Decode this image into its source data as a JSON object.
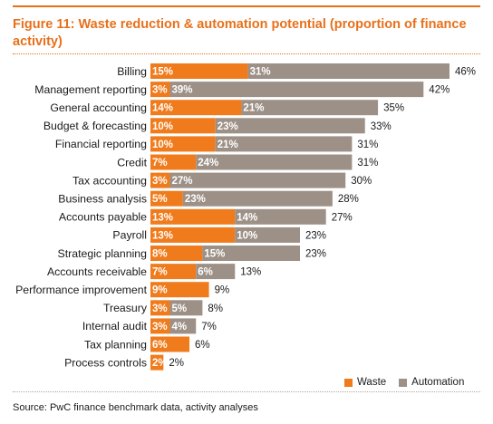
{
  "figure": {
    "title": "Figure 11: Waste reduction & automation potential (proportion of finance activity)",
    "source": "Source: PwC finance benchmark data, activity analyses"
  },
  "colors": {
    "waste": "#f07b1c",
    "automation": "#9d9086",
    "accent": "#e8701a"
  },
  "chart_data": {
    "type": "bar",
    "orientation": "horizontal",
    "stacked": true,
    "title": "Figure 11: Waste reduction & automation potential (proportion of finance activity)",
    "categories": [
      "Billing",
      "Management reporting",
      "General accounting",
      "Budget & forecasting",
      "Financial reporting",
      "Credit",
      "Tax accounting",
      "Business analysis",
      "Accounts payable",
      "Payroll",
      "Strategic planning",
      "Accounts receivable",
      "Performance improvement",
      "Treasury",
      "Internal audit",
      "Tax planning",
      "Process controls"
    ],
    "series": [
      {
        "name": "Waste",
        "values": [
          15,
          3,
          14,
          10,
          10,
          7,
          3,
          5,
          13,
          13,
          8,
          7,
          9,
          3,
          3,
          6,
          2
        ]
      },
      {
        "name": "Automation",
        "values": [
          31,
          39,
          21,
          23,
          21,
          24,
          27,
          23,
          14,
          10,
          15,
          6,
          0,
          5,
          4,
          0,
          0
        ]
      }
    ],
    "totals": [
      46,
      42,
      35,
      33,
      31,
      31,
      30,
      28,
      27,
      23,
      23,
      13,
      9,
      8,
      7,
      6,
      2
    ],
    "value_suffix": "%",
    "xlim": [
      0,
      46
    ],
    "grid": false,
    "legend_position": "bottom-right"
  }
}
